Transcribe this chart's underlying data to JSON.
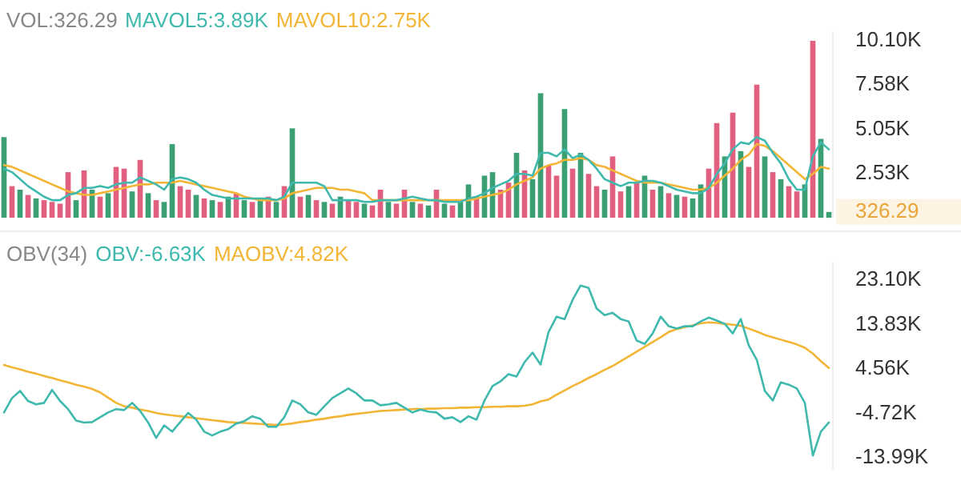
{
  "chart_data": [
    {
      "type": "bar",
      "title": "VOL:326.29",
      "tick_labels": "y",
      "categories": [
        null,
        null,
        null,
        null,
        null,
        null,
        null,
        null,
        null,
        null,
        null,
        null,
        null,
        null,
        null,
        null,
        null,
        null,
        null,
        null,
        null,
        null,
        null,
        null,
        null,
        null,
        null,
        null,
        null,
        null,
        null,
        null,
        null,
        null,
        null,
        null,
        null,
        null,
        null,
        null,
        null,
        null,
        null,
        null,
        null,
        null,
        null,
        null,
        null,
        null,
        null,
        null,
        null,
        null,
        null,
        null,
        null,
        null,
        null,
        null,
        null,
        null,
        null,
        null,
        null,
        null,
        null,
        null,
        null,
        null,
        null,
        null,
        null,
        null,
        null,
        null,
        null,
        null,
        null,
        null,
        null,
        null,
        null,
        null,
        null,
        null,
        null,
        null,
        null,
        null,
        null,
        null,
        null,
        null,
        null,
        null,
        null,
        null,
        null,
        null,
        null,
        null,
        null,
        null
      ],
      "ylim": [
        0,
        10600
      ],
      "yticks": [
        {
          "value": 326.29,
          "label": "326.29"
        },
        {
          "value": 2530,
          "label": "2.53K"
        },
        {
          "value": 5050,
          "label": "5.05K"
        },
        {
          "value": 7580,
          "label": "7.58K"
        },
        {
          "value": 10100,
          "label": "10.10K"
        }
      ],
      "series": [
        {
          "colors": [
            "#3a9f72",
            "#e2607f",
            "#3a9f72",
            "#e2607f",
            "#3a9f72",
            "#e2607f",
            "#e2607f",
            "#e2607f",
            "#e2607f",
            "#3a9f72",
            "#e2607f",
            "#3a9f72",
            "#e2607f",
            "#3a9f72",
            "#e2607f",
            "#e2607f",
            "#3a9f72",
            "#e2607f",
            "#3a9f72",
            "#e2607f",
            "#3a9f72",
            "#3a9f72",
            "#e2607f",
            "#e2607f",
            "#3a9f72",
            "#e2607f",
            "#3a9f72",
            "#e2607f",
            "#3a9f72",
            "#e2607f",
            "#3a9f72",
            "#e2607f",
            "#3a9f72",
            "#e2607f",
            "#3a9f72",
            "#e2607f",
            "#3a9f72",
            "#e2607f",
            "#3a9f72",
            "#e2607f",
            "#3a9f72",
            "#e2607f",
            "#3a9f72",
            "#e2607f",
            "#e2607f",
            "#3a9f72",
            "#e2607f",
            "#e2607f",
            "#3a9f72",
            "#e2607f",
            "#e2607f",
            "#3a9f72",
            "#e2607f",
            "#3a9f72",
            "#e2607f",
            "#3a9f72",
            "#e2607f",
            "#3a9f72",
            "#3a9f72",
            "#e2607f",
            "#3a9f72",
            "#3a9f72",
            "#e2607f",
            "#e2607f",
            "#3a9f72",
            "#e2607f",
            "#3a9f72",
            "#3a9f72",
            "#e2607f",
            "#e2607f",
            "#3a9f72",
            "#e2607f",
            "#3a9f72",
            "#e2607f",
            "#e2607f",
            "#3a9f72",
            "#e2607f",
            "#e2607f",
            "#3a9f72",
            "#e2607f",
            "#3a9f72",
            "#e2607f",
            "#3a9f72",
            "#e2607f",
            "#3a9f72",
            "#e2607f",
            "#3a9f72",
            "#3a9f72",
            "#e2607f",
            "#e2607f",
            "#3a9f72",
            "#e2607f",
            "#3a9f72",
            "#e2607f",
            "#e2607f",
            "#3a9f72",
            "#e2607f",
            "#3a9f72",
            "#e2607f",
            "#e2607f",
            "#3a9f72",
            "#e2607f",
            "#3a9f72",
            "#3a9f72"
          ],
          "values": [
            4600,
            1800,
            1600,
            1300,
            1100,
            1000,
            900,
            800,
            2600,
            1000,
            2700,
            1600,
            1200,
            1400,
            2900,
            2800,
            1500,
            3300,
            1400,
            1000,
            900,
            4200,
            1800,
            1600,
            1300,
            1100,
            1000,
            900,
            1200,
            1400,
            1000,
            900,
            1100,
            1200,
            900,
            1800,
            5100,
            1200,
            1300,
            1000,
            900,
            800,
            1200,
            1000,
            900,
            800,
            700,
            1600,
            900,
            800,
            1600,
            900,
            800,
            700,
            1600,
            800,
            700,
            900,
            1900,
            1200,
            2400,
            2600,
            1600,
            2000,
            3700,
            2700,
            2200,
            7100,
            3000,
            2400,
            6200,
            2800,
            3700,
            2500,
            1800,
            1600,
            3500,
            1500,
            1800,
            2000,
            2400,
            1600,
            1800,
            1400,
            1300,
            1200,
            1100,
            1900,
            2800,
            5400,
            3500,
            6000,
            3800,
            2900,
            7600,
            3500,
            2600,
            2200,
            1800,
            1500,
            1900,
            10100,
            4500,
            326.29
          ]
        }
      ]
    },
    {
      "type": "line",
      "tick_labels": false,
      "categories": [
        null,
        null,
        null,
        null,
        null,
        null,
        null,
        null,
        null,
        null,
        null,
        null,
        null,
        null,
        null,
        null,
        null,
        null,
        null,
        null,
        null,
        null,
        null,
        null,
        null,
        null,
        null,
        null,
        null,
        null,
        null,
        null,
        null,
        null,
        null,
        null,
        null,
        null,
        null,
        null,
        null,
        null,
        null,
        null,
        null,
        null,
        null,
        null,
        null,
        null,
        null,
        null,
        null,
        null,
        null,
        null,
        null,
        null,
        null,
        null,
        null,
        null,
        null,
        null,
        null,
        null,
        null,
        null,
        null,
        null,
        null,
        null,
        null,
        null,
        null,
        null,
        null,
        null,
        null,
        null,
        null,
        null,
        null,
        null,
        null,
        null,
        null,
        null,
        null,
        null,
        null,
        null,
        null,
        null,
        null,
        null,
        null,
        null,
        null,
        null,
        null,
        null,
        null,
        null
      ],
      "ylim": [
        0,
        10600
      ],
      "series": [
        {
          "name": "MAVOL5:3.89K",
          "color": "#3fb9ad",
          "values": [
            2800,
            2600,
            2200,
            1800,
            1500,
            1200,
            1000,
            1000,
            1300,
            1400,
            1700,
            1700,
            1800,
            1700,
            1900,
            2000,
            2000,
            2300,
            2100,
            1900,
            1600,
            2200,
            2300,
            2200,
            2000,
            1600,
            1300,
            1200,
            1100,
            1100,
            1100,
            1100,
            1100,
            1100,
            1000,
            1200,
            2000,
            2000,
            2000,
            2000,
            1800,
            1000,
            1000,
            1000,
            1000,
            900,
            900,
            1000,
            1000,
            1000,
            1100,
            1200,
            1100,
            1000,
            1000,
            900,
            900,
            900,
            1100,
            1200,
            1400,
            1700,
            1900,
            2100,
            2500,
            2500,
            2400,
            3700,
            3700,
            3500,
            3900,
            3400,
            3600,
            3300,
            2800,
            2200,
            2000,
            1800,
            2000,
            2000,
            2100,
            2100,
            2000,
            1800,
            1600,
            1500,
            1400,
            1400,
            1700,
            2500,
            3100,
            3900,
            4300,
            4200,
            4600,
            4400,
            3700,
            3100,
            2200,
            1600,
            1600,
            3500,
            4300,
            3900
          ]
        },
        {
          "name": "MAVOL10:2.75K",
          "color": "#f2b535",
          "values": [
            3000,
            2900,
            2700,
            2500,
            2300,
            2100,
            1900,
            1700,
            1500,
            1400,
            1300,
            1300,
            1400,
            1500,
            1600,
            1700,
            1800,
            1900,
            1900,
            2000,
            2000,
            2000,
            2100,
            2000,
            1900,
            1800,
            1700,
            1600,
            1500,
            1400,
            1200,
            1100,
            1000,
            1000,
            1000,
            1100,
            1400,
            1500,
            1600,
            1700,
            1700,
            1700,
            1600,
            1600,
            1500,
            1400,
            1000,
            1000,
            1000,
            1000,
            1000,
            1000,
            1000,
            1000,
            1000,
            1000,
            1000,
            1000,
            1000,
            1100,
            1200,
            1300,
            1400,
            1600,
            1900,
            2100,
            2300,
            2800,
            3000,
            3100,
            3300,
            3300,
            3400,
            3300,
            3000,
            2900,
            2700,
            2500,
            2300,
            2100,
            2000,
            2000,
            2000,
            1900,
            1800,
            1700,
            1600,
            1600,
            1700,
            2000,
            2400,
            2800,
            3300,
            3600,
            4200,
            4100,
            3800,
            3400,
            3000,
            2600,
            2200,
            2500,
            2900,
            2800
          ]
        }
      ]
    },
    {
      "type": "line",
      "title": "OBV(34)",
      "tick_labels": "y",
      "categories": [
        null,
        null,
        null,
        null,
        null,
        null,
        null,
        null,
        null,
        null,
        null,
        null,
        null,
        null,
        null,
        null,
        null,
        null,
        null,
        null,
        null,
        null,
        null,
        null,
        null,
        null,
        null,
        null,
        null,
        null,
        null,
        null,
        null,
        null,
        null,
        null,
        null,
        null,
        null,
        null,
        null,
        null,
        null,
        null,
        null,
        null,
        null,
        null,
        null,
        null,
        null,
        null,
        null,
        null,
        null,
        null,
        null,
        null,
        null,
        null,
        null,
        null,
        null,
        null,
        null,
        null,
        null,
        null,
        null,
        null,
        null,
        null,
        null,
        null,
        null,
        null,
        null,
        null,
        null,
        null,
        null,
        null,
        null,
        null,
        null,
        null,
        null,
        null,
        null,
        null,
        null,
        null,
        null,
        null,
        null,
        null,
        null,
        null,
        null,
        null,
        null,
        null,
        null,
        null
      ],
      "ylim": [
        -16300,
        26800
      ],
      "yticks": [
        {
          "value": -13990,
          "label": "-13.99K"
        },
        {
          "value": -4720,
          "label": "-4.72K"
        },
        {
          "value": 4560,
          "label": "4.56K"
        },
        {
          "value": 13830,
          "label": "13.83K"
        },
        {
          "value": 23100,
          "label": "23.10K"
        }
      ],
      "series": [
        {
          "name": "OBV:-6.63K",
          "color": "#3fb9ad",
          "values": [
            -4500,
            -1500,
            0,
            -2100,
            -2800,
            -2500,
            200,
            -2100,
            -3800,
            -6200,
            -6600,
            -6500,
            -5500,
            -4500,
            -3800,
            -4000,
            -2500,
            -4200,
            -6600,
            -9800,
            -7200,
            -8500,
            -6500,
            -4600,
            -6000,
            -8500,
            -9300,
            -8500,
            -8000,
            -6800,
            -6300,
            -5300,
            -5800,
            -7500,
            -7500,
            -5500,
            -2000,
            -2800,
            -4500,
            -5000,
            -3200,
            -1500,
            -500,
            500,
            -500,
            -2000,
            -2000,
            -3000,
            -2800,
            -2500,
            -3500,
            -4500,
            -3900,
            -4300,
            -4500,
            -5800,
            -5500,
            -6500,
            -5300,
            -6000,
            -2000,
            1000,
            2000,
            3500,
            3000,
            6000,
            8000,
            5500,
            12300,
            15500,
            15000,
            19000,
            22000,
            21500,
            17200,
            15800,
            16300,
            15000,
            14500,
            10500,
            9800,
            12000,
            15500,
            13500,
            13000,
            13500,
            13500,
            14500,
            15300,
            14700,
            14000,
            12000,
            15000,
            9500,
            6500,
            0,
            -2000,
            1800,
            1300,
            500,
            -2500,
            -13500,
            -8500,
            -6600
          ]
        },
        {
          "name": "MAOBV:4.82K",
          "color": "#f2b535",
          "values": [
            5400,
            4900,
            4500,
            4000,
            3600,
            3100,
            2700,
            2200,
            1800,
            1300,
            900,
            400,
            -300,
            -1400,
            -2500,
            -3200,
            -3500,
            -3900,
            -4200,
            -4600,
            -4900,
            -5100,
            -5300,
            -5500,
            -5700,
            -5900,
            -6100,
            -6300,
            -6500,
            -6600,
            -6700,
            -6800,
            -6900,
            -7000,
            -7100,
            -7000,
            -6800,
            -6500,
            -6300,
            -6000,
            -5800,
            -5500,
            -5300,
            -5000,
            -4800,
            -4600,
            -4400,
            -4200,
            -4100,
            -4000,
            -3900,
            -3800,
            -3800,
            -3700,
            -3700,
            -3600,
            -3600,
            -3500,
            -3500,
            -3400,
            -3400,
            -3300,
            -3300,
            -3200,
            -3200,
            -3100,
            -2800,
            -2200,
            -1800,
            -800,
            100,
            1000,
            1800,
            2700,
            3500,
            4400,
            5200,
            6200,
            7200,
            8200,
            9200,
            10200,
            11200,
            12300,
            12900,
            13300,
            13700,
            14100,
            14300,
            14200,
            14000,
            13800,
            13600,
            13000,
            12400,
            11700,
            11200,
            10700,
            10200,
            9700,
            9000,
            7800,
            6200,
            4800
          ]
        }
      ]
    }
  ]
}
